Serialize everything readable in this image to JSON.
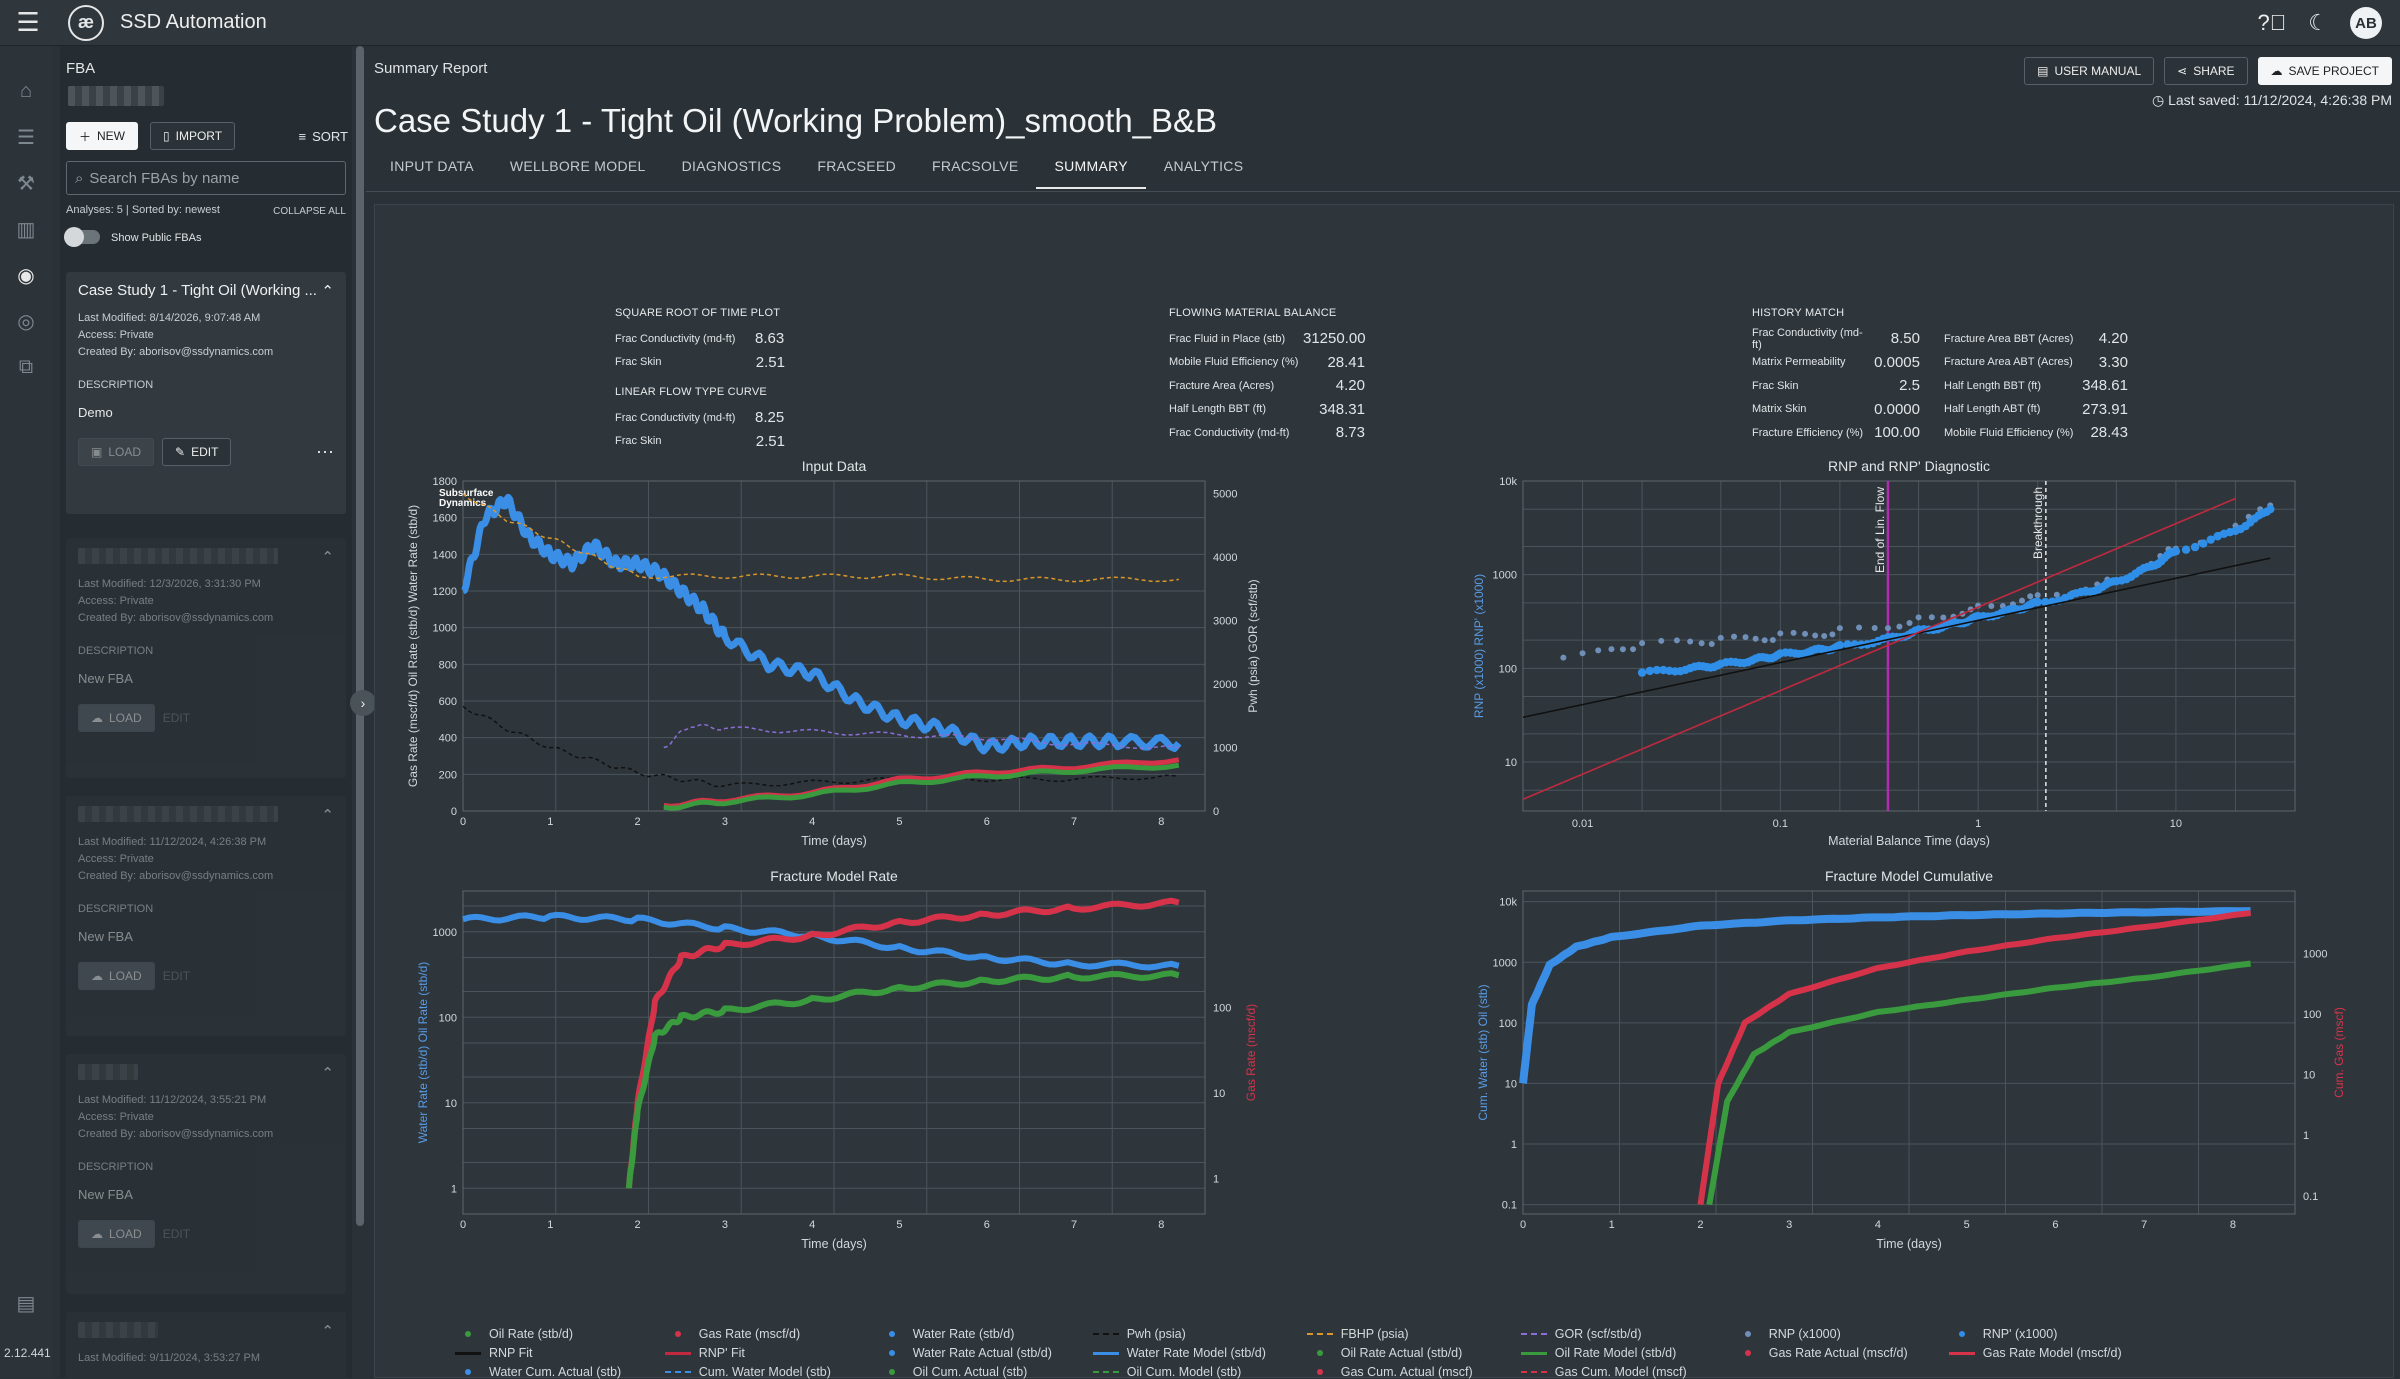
{
  "app": {
    "title": "SSD Automation",
    "version": "2.12.441",
    "logo_text": "æ"
  },
  "panel": {
    "title": "FBA",
    "new_label": "NEW",
    "import_label": "IMPORT",
    "sort_label": "SORT",
    "search_placeholder": "Search FBAs by name",
    "analyses_info": "Analyses: 5 | Sorted by: newest",
    "collapse_all": "COLLAPSE ALL",
    "show_public": "Show Public FBAs",
    "cards": [
      {
        "title": "Case Study 1 - Tight Oil (Working ...",
        "modified": "Last Modified: 8/14/2026, 9:07:48 AM",
        "access": "Access: Private",
        "created": "Created By: aborisov@ssdynamics.com",
        "desc_label": "DESCRIPTION",
        "desc": "Demo",
        "load": "LOAD",
        "edit": "EDIT"
      },
      {
        "title": "",
        "modified": "Last Modified: 12/3/2026, 3:31:30 PM",
        "access": "Access: Private",
        "created": "Created By: aborisov@ssdynamics.com",
        "desc_label": "DESCRIPTION",
        "desc": "New FBA",
        "load": "LOAD",
        "edit": "EDIT"
      },
      {
        "title": "",
        "modified": "Last Modified: 11/12/2024, 4:26:38 PM",
        "access": "Access: Private",
        "created": "Created By: aborisov@ssdynamics.com",
        "desc_label": "DESCRIPTION",
        "desc": "New FBA",
        "load": "LOAD",
        "edit": "EDIT"
      },
      {
        "title": "",
        "modified": "Last Modified: 11/12/2024, 3:55:21 PM",
        "access": "Access: Private",
        "created": "Created By: aborisov@ssdynamics.com",
        "desc_label": "DESCRIPTION",
        "desc": "New FBA",
        "load": "LOAD",
        "edit": "EDIT"
      },
      {
        "title": "",
        "modified": "Last Modified: 9/11/2024, 3:53:27 PM"
      }
    ]
  },
  "main": {
    "breadcrumb": "Summary Report",
    "title": "Case Study 1 - Tight Oil (Working Problem)_smooth_B&B",
    "user_manual": "USER MANUAL",
    "share": "SHARE",
    "save_project": "SAVE PROJECT",
    "last_saved": "Last saved: 11/12/2024, 4:26:38 PM",
    "tabs": [
      "INPUT DATA",
      "WELLBORE MODEL",
      "DIAGNOSTICS",
      "FRACSEED",
      "FRACSOLVE",
      "SUMMARY",
      "ANALYTICS"
    ],
    "active_tab": 5
  },
  "metrics": {
    "sqrt": {
      "title": "SQUARE ROOT OF TIME PLOT",
      "rows": [
        [
          "Frac Conductivity (md-ft)",
          "8.63"
        ],
        [
          "Frac Skin",
          "2.51"
        ]
      ]
    },
    "lin": {
      "title": "LINEAR FLOW TYPE CURVE",
      "rows": [
        [
          "Frac Conductivity (md-ft)",
          "8.25"
        ],
        [
          "Frac Skin",
          "2.51"
        ]
      ]
    },
    "fmb": {
      "title": "FLOWING MATERIAL BALANCE",
      "rows": [
        [
          "Frac Fluid in Place (stb)",
          "31250.00"
        ],
        [
          "Mobile Fluid Efficiency (%)",
          "28.41"
        ],
        [
          "Fracture Area (Acres)",
          "4.20"
        ],
        [
          "Half Length BBT (ft)",
          "348.31"
        ],
        [
          "Frac Conductivity (md-ft)",
          "8.73"
        ]
      ]
    },
    "hm": {
      "title": "HISTORY MATCH",
      "rows": [
        [
          "Frac Conductivity (md-ft)",
          "8.50"
        ],
        [
          "Matrix Permeability",
          "0.0005"
        ],
        [
          "Frac Skin",
          "2.5"
        ],
        [
          "Matrix Skin",
          "0.0000"
        ],
        [
          "Fracture Efficiency (%)",
          "100.00"
        ]
      ]
    },
    "hm2": {
      "rows": [
        [
          "Fracture Area BBT (Acres)",
          "4.20"
        ],
        [
          "Fracture Area ABT (Acres)",
          "3.30"
        ],
        [
          "Half Length BBT (ft)",
          "348.61"
        ],
        [
          "Half Length ABT (ft)",
          "273.91"
        ],
        [
          "Mobile Fluid Efficiency (%)",
          "28.43"
        ]
      ]
    }
  },
  "watermark": "Subsurface Dynamics",
  "chart_data": [
    {
      "type": "line",
      "title": "Input Data",
      "xlabel": "Time (days)",
      "xlim": [
        0,
        8.5
      ],
      "ylabel_left": "Gas Rate (mscf/d)  Oil Rate (stb/d)  Water Rate (stb/d)",
      "ylim_left": [
        0,
        1800
      ],
      "yticks_left": [
        "0",
        "200",
        "400",
        "600",
        "800",
        "1000",
        "1200",
        "1400",
        "1600",
        "1800"
      ],
      "ylabel_right": "Pwh (psia)  GOR (scf/stb)",
      "ylim_right": [
        0,
        5200
      ],
      "yticks_right": [
        "0",
        "1000",
        "2000",
        "3000",
        "4000",
        "5000"
      ],
      "xticks": [
        "0",
        "1",
        "2",
        "3",
        "4",
        "5",
        "6",
        "7",
        "8"
      ],
      "series": [
        {
          "name": "Water Rate (stb/d)",
          "color": "#3a8ee6",
          "x": [
            0,
            0.25,
            0.5,
            0.75,
            1,
            1.25,
            1.5,
            1.75,
            2,
            2.25,
            2.5,
            2.75,
            3,
            3.5,
            4,
            4.5,
            5,
            5.5,
            6,
            6.5,
            7,
            7.5,
            8.2
          ],
          "y": [
            1200,
            1600,
            1700,
            1500,
            1400,
            1350,
            1450,
            1350,
            1350,
            1300,
            1200,
            1100,
            950,
            800,
            750,
            600,
            500,
            450,
            350,
            380,
            380,
            380,
            370
          ]
        },
        {
          "name": "FBHP (psia)",
          "color": "#d9962a",
          "axis": "right",
          "x": [
            0,
            0.5,
            1,
            1.5,
            2,
            3,
            4,
            5,
            6,
            7,
            8.2
          ],
          "y": [
            5000,
            4600,
            4300,
            4000,
            3700,
            3700,
            3700,
            3700,
            3650,
            3650,
            3650
          ]
        },
        {
          "name": "Pwh (psia)",
          "color": "#111111",
          "axis": "right",
          "x": [
            0,
            0.5,
            1,
            1.5,
            2,
            2.5,
            3,
            4,
            5,
            6,
            7,
            8.2
          ],
          "y": [
            1650,
            1300,
            1000,
            800,
            600,
            500,
            400,
            450,
            500,
            500,
            500,
            550
          ]
        },
        {
          "name": "GOR (scf/stb/d)",
          "color": "#8b6fd6",
          "axis": "right",
          "x": [
            2.3,
            2.6,
            3,
            4,
            5,
            6,
            7,
            8.2
          ],
          "y": [
            1000,
            1350,
            1300,
            1250,
            1200,
            1150,
            1050,
            1000
          ]
        },
        {
          "name": "Gas Rate (mscf/d)",
          "color": "#d6334a",
          "x": [
            2.3,
            3,
            4,
            5,
            6,
            7,
            8.2
          ],
          "y": [
            30,
            60,
            100,
            170,
            210,
            240,
            280
          ]
        },
        {
          "name": "Oil Rate (stb/d)",
          "color": "#3a9a3e",
          "x": [
            2.3,
            3,
            4,
            5,
            6,
            7,
            8.2
          ],
          "y": [
            20,
            50,
            90,
            150,
            190,
            220,
            250
          ]
        }
      ]
    },
    {
      "type": "scatter",
      "title": "RNP and RNP' Diagnostic",
      "xlabel": "Material Balance Time (days)",
      "ylabel": "RNP (x1000)  RNP' (x1000)",
      "xlog": true,
      "ylog": true,
      "xlim": [
        0.005,
        40
      ],
      "ylim": [
        3,
        10000
      ],
      "xticks": [
        "0.01",
        "0.1",
        "1",
        "10"
      ],
      "yticks": [
        "10",
        "100",
        "1000",
        "10k"
      ],
      "annotations": [
        "End of Lin. Flow",
        "Breakthrough"
      ],
      "annotation_x": [
        0.35,
        2.2
      ],
      "series": [
        {
          "name": "RNP (x1000)",
          "color": "#6f8fb8",
          "x": [
            0.008,
            0.02,
            0.05,
            0.1,
            0.2,
            0.5,
            1,
            2,
            5,
            10,
            30
          ],
          "y": [
            130,
            180,
            200,
            220,
            250,
            330,
            450,
            600,
            900,
            2000,
            5500
          ]
        },
        {
          "name": "RNP' (x1000)",
          "color": "#2f8fe8",
          "x": [
            0.02,
            0.05,
            0.1,
            0.2,
            0.5,
            1,
            2,
            5,
            10,
            30
          ],
          "y": [
            90,
            110,
            140,
            170,
            250,
            350,
            500,
            850,
            1800,
            5000
          ]
        },
        {
          "name": "RNP Fit",
          "color": "#111111",
          "x": [
            0.005,
            30
          ],
          "y": [
            30,
            1500
          ]
        },
        {
          "name": "RNP' Fit",
          "color": "#c0293f",
          "x": [
            0.005,
            20
          ],
          "y": [
            4,
            6500
          ]
        }
      ]
    },
    {
      "type": "line",
      "title": "Fracture Model Rate",
      "xlabel": "Time (days)",
      "ylabel_left": "Water Rate (stb/d)  Oil Rate (stb/d)",
      "ylabel_right": "Gas Rate (mscf/d)",
      "ylog": true,
      "xlim": [
        0,
        8.5
      ],
      "ylim": [
        0.5,
        3000
      ],
      "xticks": [
        "0",
        "1",
        "2",
        "3",
        "4",
        "5",
        "6",
        "7",
        "8"
      ],
      "yticks_left": [
        "1",
        "10",
        "100",
        "1000"
      ],
      "yticks_right": [
        "1",
        "10",
        "100"
      ],
      "series": [
        {
          "name": "Water Rate Actual (stb/d)",
          "color": "#3a8ee6",
          "x": [
            0,
            1,
            2,
            3,
            4,
            5,
            6,
            7,
            8.2
          ],
          "y": [
            1400,
            1500,
            1400,
            1100,
            900,
            650,
            500,
            420,
            400
          ]
        },
        {
          "name": "Gas Rate Actual (mscf/d)",
          "color": "#d6334a",
          "x": [
            1.9,
            2,
            2.2,
            2.5,
            3,
            4,
            5,
            6,
            7,
            8.2
          ],
          "y": [
            1,
            10,
            150,
            500,
            700,
            900,
            1300,
            1600,
            1900,
            2200
          ]
        },
        {
          "name": "Oil Rate Actual (stb/d)",
          "color": "#3a9a3e",
          "x": [
            1.9,
            2,
            2.2,
            2.5,
            3,
            4,
            5,
            6,
            7,
            8.2
          ],
          "y": [
            1,
            8,
            60,
            100,
            120,
            160,
            220,
            270,
            300,
            310
          ]
        }
      ]
    },
    {
      "type": "line",
      "title": "Fracture Model Cumulative",
      "xlabel": "Time (days)",
      "ylabel_left": "Cum. Water (stb)  Oil (stb)",
      "ylabel_right": "Cum. Gas (mscf)",
      "ylog": true,
      "xlim": [
        0,
        8.7
      ],
      "ylim": [
        0.07,
        15000
      ],
      "xticks": [
        "0",
        "1",
        "2",
        "3",
        "4",
        "5",
        "6",
        "7",
        "8"
      ],
      "yticks_left": [
        "0.1",
        "1",
        "10",
        "100",
        "1000",
        "10k"
      ],
      "yticks_right": [
        "0.1",
        "1",
        "10",
        "100",
        "1000"
      ],
      "series": [
        {
          "name": "Water Cum. Actual (stb)",
          "color": "#3a8ee6",
          "x": [
            0,
            0.1,
            0.3,
            0.6,
            1,
            2,
            3,
            4,
            5,
            6,
            7,
            8.2
          ],
          "y": [
            10,
            200,
            900,
            1800,
            2600,
            4000,
            4900,
            5500,
            6000,
            6400,
            6700,
            7000
          ]
        },
        {
          "name": "Gas Cum. Actual (mscf)",
          "color": "#d6334a",
          "x": [
            2,
            2.2,
            2.5,
            3,
            4,
            5,
            6,
            7,
            8.2
          ],
          "y": [
            0.1,
            10,
            100,
            300,
            800,
            1500,
            2500,
            3800,
            6500
          ]
        },
        {
          "name": "Oil Cum. Actual (stb)",
          "color": "#3a9a3e",
          "x": [
            2.1,
            2.3,
            2.6,
            3,
            4,
            5,
            6,
            7,
            8.2
          ],
          "y": [
            0.1,
            5,
            30,
            70,
            150,
            240,
            380,
            550,
            950
          ]
        }
      ]
    }
  ],
  "legend": [
    {
      "label": "Oil Rate (stb/d)",
      "color": "#3a9a3e",
      "style": "dot"
    },
    {
      "label": "Gas Rate (mscf/d)",
      "color": "#d6334a",
      "style": "dot"
    },
    {
      "label": "Water Rate (stb/d)",
      "color": "#3a8ee6",
      "style": "dot"
    },
    {
      "label": "Pwh (psia)",
      "color": "#111111",
      "style": "dash"
    },
    {
      "label": "FBHP (psia)",
      "color": "#d9962a",
      "style": "dash"
    },
    {
      "label": "GOR (scf/stb/d)",
      "color": "#8b6fd6",
      "style": "dash"
    },
    {
      "label": "RNP (x1000)",
      "color": "#6f8fb8",
      "style": "dot"
    },
    {
      "label": "RNP' (x1000)",
      "color": "#2f8fe8",
      "style": "dot"
    },
    {
      "label": "RNP Fit",
      "color": "#111111",
      "style": "line"
    },
    {
      "label": "RNP' Fit",
      "color": "#c0293f",
      "style": "line"
    },
    {
      "label": "Water Rate Actual (stb/d)",
      "color": "#3a8ee6",
      "style": "dot"
    },
    {
      "label": "Water Rate Model (stb/d)",
      "color": "#3a8ee6",
      "style": "line"
    },
    {
      "label": "Oil Rate Actual (stb/d)",
      "color": "#3a9a3e",
      "style": "dot"
    },
    {
      "label": "Oil Rate Model (stb/d)",
      "color": "#3a9a3e",
      "style": "line"
    },
    {
      "label": "Gas Rate Actual (mscf/d)",
      "color": "#d6334a",
      "style": "dot"
    },
    {
      "label": "Gas Rate Model (mscf/d)",
      "color": "#d6334a",
      "style": "line"
    },
    {
      "label": "Water Cum. Actual (stb)",
      "color": "#3a8ee6",
      "style": "dot"
    },
    {
      "label": "Cum. Water Model (stb)",
      "color": "#3a8ee6",
      "style": "dash"
    },
    {
      "label": "Oil Cum. Actual (stb)",
      "color": "#3a9a3e",
      "style": "dot"
    },
    {
      "label": "Oil Cum. Model (stb)",
      "color": "#3a9a3e",
      "style": "dash"
    },
    {
      "label": "Gas Cum. Actual (mscf)",
      "color": "#d6334a",
      "style": "dot"
    },
    {
      "label": "Gas Cum. Model (mscf)",
      "color": "#d6334a",
      "style": "dash"
    }
  ]
}
